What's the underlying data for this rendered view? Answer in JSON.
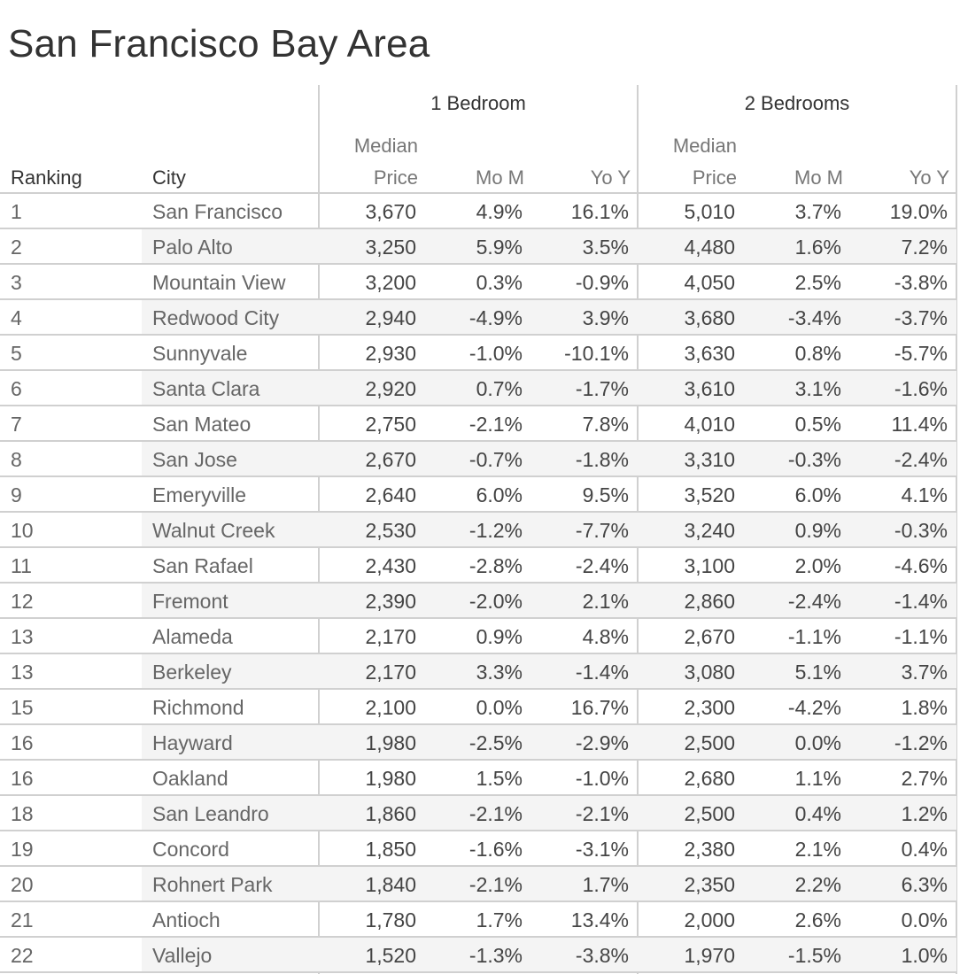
{
  "title": "San Francisco Bay Area",
  "headers": {
    "ranking": "Ranking",
    "city": "City",
    "group1": "1 Bedroom",
    "group2": "2 Bedrooms",
    "median_top": "Median",
    "median_bottom": "Price",
    "mom": "Mo M",
    "yoy": "Yo Y"
  },
  "chart_data": {
    "type": "table",
    "title": "San Francisco Bay Area",
    "columns": [
      "Ranking",
      "City",
      "1 Bedroom Median Price",
      "1 Bedroom Mo M",
      "1 Bedroom Yo Y",
      "2 Bedrooms Median Price",
      "2 Bedrooms Mo M",
      "2 Bedrooms Yo Y"
    ],
    "rows": [
      [
        "1",
        "San Francisco",
        "3,670",
        "4.9%",
        "16.1%",
        "5,010",
        "3.7%",
        "19.0%"
      ],
      [
        "2",
        "Palo Alto",
        "3,250",
        "5.9%",
        "3.5%",
        "4,480",
        "1.6%",
        "7.2%"
      ],
      [
        "3",
        "Mountain View",
        "3,200",
        "0.3%",
        "-0.9%",
        "4,050",
        "2.5%",
        "-3.8%"
      ],
      [
        "4",
        "Redwood City",
        "2,940",
        "-4.9%",
        "3.9%",
        "3,680",
        "-3.4%",
        "-3.7%"
      ],
      [
        "5",
        "Sunnyvale",
        "2,930",
        "-1.0%",
        "-10.1%",
        "3,630",
        "0.8%",
        "-5.7%"
      ],
      [
        "6",
        "Santa Clara",
        "2,920",
        "0.7%",
        "-1.7%",
        "3,610",
        "3.1%",
        "-1.6%"
      ],
      [
        "7",
        "San Mateo",
        "2,750",
        "-2.1%",
        "7.8%",
        "4,010",
        "0.5%",
        "11.4%"
      ],
      [
        "8",
        "San Jose",
        "2,670",
        "-0.7%",
        "-1.8%",
        "3,310",
        "-0.3%",
        "-2.4%"
      ],
      [
        "9",
        "Emeryville",
        "2,640",
        "6.0%",
        "9.5%",
        "3,520",
        "6.0%",
        "4.1%"
      ],
      [
        "10",
        "Walnut Creek",
        "2,530",
        "-1.2%",
        "-7.7%",
        "3,240",
        "0.9%",
        "-0.3%"
      ],
      [
        "11",
        "San Rafael",
        "2,430",
        "-2.8%",
        "-2.4%",
        "3,100",
        "2.0%",
        "-4.6%"
      ],
      [
        "12",
        "Fremont",
        "2,390",
        "-2.0%",
        "2.1%",
        "2,860",
        "-2.4%",
        "-1.4%"
      ],
      [
        "13",
        "Alameda",
        "2,170",
        "0.9%",
        "4.8%",
        "2,670",
        "-1.1%",
        "-1.1%"
      ],
      [
        "13",
        "Berkeley",
        "2,170",
        "3.3%",
        "-1.4%",
        "3,080",
        "5.1%",
        "3.7%"
      ],
      [
        "15",
        "Richmond",
        "2,100",
        "0.0%",
        "16.7%",
        "2,300",
        "-4.2%",
        "1.8%"
      ],
      [
        "16",
        "Hayward",
        "1,980",
        "-2.5%",
        "-2.9%",
        "2,500",
        "0.0%",
        "-1.2%"
      ],
      [
        "16",
        "Oakland",
        "1,980",
        "1.5%",
        "-1.0%",
        "2,680",
        "1.1%",
        "2.7%"
      ],
      [
        "18",
        "San Leandro",
        "1,860",
        "-2.1%",
        "-2.1%",
        "2,500",
        "0.4%",
        "1.2%"
      ],
      [
        "19",
        "Concord",
        "1,850",
        "-1.6%",
        "-3.1%",
        "2,380",
        "2.1%",
        "0.4%"
      ],
      [
        "20",
        "Rohnert Park",
        "1,840",
        "-2.1%",
        "1.7%",
        "2,350",
        "2.2%",
        "6.3%"
      ],
      [
        "21",
        "Antioch",
        "1,780",
        "1.7%",
        "13.4%",
        "2,000",
        "2.6%",
        "0.0%"
      ],
      [
        "22",
        "Vallejo",
        "1,520",
        "-1.3%",
        "-3.8%",
        "1,970",
        "-1.5%",
        "1.0%"
      ]
    ]
  }
}
